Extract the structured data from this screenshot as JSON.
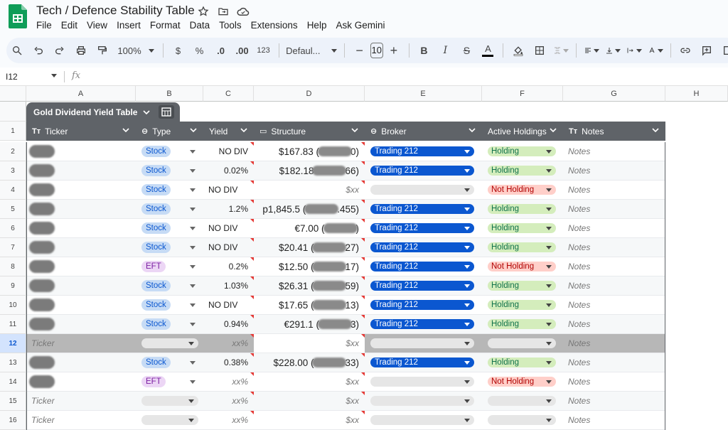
{
  "app": {
    "title": "Tech / Defence Stability Table",
    "menu": [
      "File",
      "Edit",
      "View",
      "Insert",
      "Format",
      "Data",
      "Tools",
      "Extensions",
      "Help",
      "Ask Gemini"
    ]
  },
  "toolbar": {
    "zoom": "100%",
    "currency": "$",
    "percent": "%",
    "dec_less": ".0",
    "dec_more": ".00",
    "number_format": "123",
    "font": "Defaul...",
    "font_size": "10"
  },
  "formula_bar": {
    "cell_ref": "I12",
    "fx": "fx"
  },
  "columns": [
    "A",
    "B",
    "C",
    "D",
    "E",
    "F",
    "G",
    "H"
  ],
  "table": {
    "name": "Gold Dividend Yield Table",
    "headers": [
      {
        "label": "Ticker",
        "icon": "Tт"
      },
      {
        "label": "Type",
        "icon": "⊖"
      },
      {
        "label": "Yield",
        "icon": ""
      },
      {
        "label": "Structure",
        "icon": "▭"
      },
      {
        "label": "Broker",
        "icon": "⊖"
      },
      {
        "label": "Active Holdings",
        "icon": ""
      },
      {
        "label": "Notes",
        "icon": "Tт"
      }
    ],
    "rows": [
      {
        "num": "2",
        "type": "Stock",
        "yield": "NO DIV",
        "yield_align": "right",
        "struct_pre": "$167.83 (",
        "struct_post": "0)",
        "broker": "Trading 212",
        "holding": "Holding",
        "notes": "Notes"
      },
      {
        "num": "3",
        "type": "Stock",
        "yield": "0.02%",
        "yield_align": "right",
        "struct_pre": "$182.18 ",
        "struct_post": "66)",
        "broker": "Trading 212",
        "holding": "Holding",
        "notes": "Notes"
      },
      {
        "num": "4",
        "type": "Stock",
        "yield": "NO DIV",
        "yield_align": "left",
        "struct_placeholder": "$xx",
        "broker": "",
        "holding": "Not Holding",
        "notes": "Notes"
      },
      {
        "num": "5",
        "type": "Stock",
        "yield": "1.2%",
        "yield_align": "right",
        "struct_pre": "p1,845.5 (",
        "struct_post": ".455)",
        "broker": "Trading 212",
        "holding": "Holding",
        "notes": "Notes"
      },
      {
        "num": "6",
        "type": "Stock",
        "yield": "NO DIV",
        "yield_align": "left",
        "struct_pre": "€7.00 (",
        "struct_post": ")",
        "broker": "Trading 212",
        "holding": "Holding",
        "notes": "Notes"
      },
      {
        "num": "7",
        "type": "Stock",
        "yield": "NO DIV",
        "yield_align": "left",
        "struct_pre": "$20.41 (",
        "struct_post": "27)",
        "broker": "Trading 212",
        "holding": "Holding",
        "notes": "Notes"
      },
      {
        "num": "8",
        "type": "EFT",
        "yield": "0.2%",
        "yield_align": "right",
        "struct_pre": "$12.50 (",
        "struct_post": "17)",
        "broker": "Trading 212",
        "holding": "Not Holding",
        "notes": "Notes"
      },
      {
        "num": "9",
        "type": "Stock",
        "yield": "1.03%",
        "yield_align": "right",
        "struct_pre": "$26.31 (",
        "struct_post": "59)",
        "broker": "Trading 212",
        "holding": "Holding",
        "notes": "Notes"
      },
      {
        "num": "10",
        "type": "Stock",
        "yield": "NO DIV",
        "yield_align": "left",
        "struct_pre": "$17.65 (",
        "struct_post": "13)",
        "broker": "Trading 212",
        "holding": "Holding",
        "notes": "Notes"
      },
      {
        "num": "11",
        "type": "Stock",
        "yield": "0.94%",
        "yield_align": "right",
        "struct_pre": "€291.1 (",
        "struct_post": "3)",
        "broker": "Trading 212",
        "holding": "Holding",
        "notes": "Notes"
      },
      {
        "num": "12",
        "ticker_placeholder": "Ticker",
        "type": "",
        "yield": "xx%",
        "yield_align": "right",
        "struct_placeholder": "$xx",
        "broker": "",
        "holding": "",
        "notes": "Notes",
        "selected": true
      },
      {
        "num": "13",
        "type": "Stock",
        "yield": "0.38%",
        "yield_align": "right",
        "struct_pre": "$228.00 (",
        "struct_post": "33)",
        "broker": "Trading 212",
        "holding": "Holding",
        "notes": "Notes"
      },
      {
        "num": "14",
        "type": "EFT",
        "yield": "xx%",
        "yield_align": "right",
        "struct_placeholder": "$xx",
        "broker": "",
        "holding": "Not Holding",
        "notes": "Notes"
      },
      {
        "num": "15",
        "ticker_placeholder": "Ticker",
        "type": "",
        "yield": "xx%",
        "yield_align": "right",
        "struct_placeholder": "$xx",
        "broker": "",
        "holding": "",
        "notes": "Notes"
      },
      {
        "num": "16",
        "ticker_placeholder": "Ticker",
        "type": "",
        "yield": "xx%",
        "yield_align": "right",
        "struct_placeholder": "$xx",
        "broker": "",
        "holding": "",
        "notes": "Notes"
      }
    ]
  }
}
